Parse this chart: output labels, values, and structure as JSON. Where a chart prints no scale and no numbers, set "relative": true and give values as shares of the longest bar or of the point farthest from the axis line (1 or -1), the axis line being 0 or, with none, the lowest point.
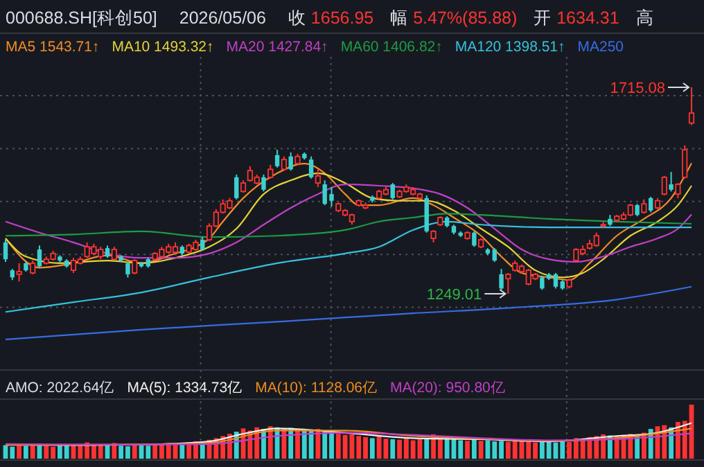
{
  "chart_data": [
    {
      "type": "candlestick",
      "title": "000688.SH[科创50]",
      "subtitle": "2026/05/06",
      "annotations": [
        "1715.08",
        "1249.01",
        "收 1656.95",
        "幅 5.47%(85.88)",
        "开 1634.31",
        "高"
      ],
      "categories": [
        null,
        null,
        null,
        null,
        null,
        null,
        null,
        null,
        null,
        null,
        null,
        null,
        null,
        null,
        null,
        null,
        null,
        null,
        null,
        null,
        null,
        null,
        null,
        null,
        null,
        null,
        null,
        null,
        null,
        null,
        null,
        null,
        null,
        null,
        null,
        null,
        null,
        null,
        null,
        null,
        null,
        null,
        null,
        null,
        null,
        null,
        null,
        null,
        null,
        null,
        null,
        null,
        null,
        null,
        null,
        null,
        null,
        null,
        null,
        null,
        null,
        null,
        null,
        null,
        null,
        null,
        null,
        null,
        null,
        null,
        null,
        null,
        null,
        null,
        null,
        null,
        null,
        null,
        null,
        null,
        null,
        null,
        null,
        null,
        null,
        null,
        null,
        null,
        null,
        null,
        null,
        null,
        null,
        null,
        null,
        null,
        null,
        null,
        null,
        null,
        null,
        null
      ],
      "ohlc": [
        [
          1365,
          1371,
          1321,
          1327
        ],
        [
          1302,
          1305,
          1280,
          1286
        ],
        [
          1293,
          1318,
          1277,
          1299
        ],
        [
          1318,
          1321,
          1299,
          1302
        ],
        [
          1296,
          1324,
          1293,
          1318
        ],
        [
          1349,
          1358,
          1308,
          1311
        ],
        [
          1318,
          1333,
          1315,
          1327
        ],
        [
          1327,
          1346,
          1324,
          1340
        ],
        [
          1333,
          1336,
          1318,
          1324
        ],
        [
          1324,
          1327,
          1308,
          1311
        ],
        [
          1302,
          1330,
          1296,
          1324
        ],
        [
          1318,
          1333,
          1315,
          1327
        ],
        [
          1333,
          1365,
          1330,
          1355
        ],
        [
          1340,
          1362,
          1336,
          1355
        ],
        [
          1333,
          1355,
          1327,
          1349
        ],
        [
          1352,
          1358,
          1330,
          1333
        ],
        [
          1327,
          1355,
          1324,
          1349
        ],
        [
          1333,
          1336,
          1321,
          1324
        ],
        [
          1318,
          1321,
          1286,
          1293
        ],
        [
          1296,
          1327,
          1293,
          1324
        ],
        [
          1318,
          1321,
          1308,
          1311
        ],
        [
          1327,
          1330,
          1308,
          1311
        ],
        [
          1327,
          1343,
          1324,
          1340
        ],
        [
          1333,
          1355,
          1330,
          1349
        ],
        [
          1343,
          1362,
          1340,
          1355
        ],
        [
          1343,
          1365,
          1340,
          1355
        ],
        [
          1355,
          1358,
          1336,
          1340
        ],
        [
          1343,
          1362,
          1340,
          1358
        ],
        [
          1349,
          1371,
          1346,
          1365
        ],
        [
          1371,
          1377,
          1346,
          1349
        ],
        [
          1371,
          1408,
          1368,
          1402
        ],
        [
          1402,
          1440,
          1399,
          1433
        ],
        [
          1433,
          1462,
          1430,
          1452
        ],
        [
          1443,
          1465,
          1440,
          1459
        ],
        [
          1512,
          1518,
          1462,
          1465
        ],
        [
          1480,
          1505,
          1477,
          1499
        ],
        [
          1505,
          1537,
          1502,
          1527
        ],
        [
          1499,
          1518,
          1496,
          1512
        ],
        [
          1512,
          1518,
          1480,
          1484
        ],
        [
          1512,
          1540,
          1509,
          1530
        ],
        [
          1562,
          1574,
          1534,
          1537
        ],
        [
          1530,
          1559,
          1527,
          1552
        ],
        [
          1559,
          1568,
          1527,
          1530
        ],
        [
          1543,
          1565,
          1540,
          1559
        ],
        [
          1565,
          1568,
          1552,
          1555
        ],
        [
          1552,
          1559,
          1509,
          1512
        ],
        [
          1499,
          1530,
          1490,
          1515
        ],
        [
          1496,
          1505,
          1449,
          1452
        ],
        [
          1474,
          1490,
          1446,
          1459
        ],
        [
          1437,
          1455,
          1433,
          1452
        ],
        [
          1427,
          1440,
          1424,
          1437
        ],
        [
          1412,
          1430,
          1405,
          1427
        ],
        [
          1449,
          1462,
          1446,
          1459
        ],
        [
          1443,
          1455,
          1440,
          1449
        ],
        [
          1468,
          1471,
          1455,
          1459
        ],
        [
          1465,
          1484,
          1462,
          1480
        ],
        [
          1474,
          1490,
          1471,
          1484
        ],
        [
          1496,
          1499,
          1462,
          1465
        ],
        [
          1468,
          1484,
          1465,
          1480
        ],
        [
          1480,
          1496,
          1477,
          1490
        ],
        [
          1474,
          1490,
          1471,
          1484
        ],
        [
          1465,
          1477,
          1462,
          1474
        ],
        [
          1465,
          1471,
          1387,
          1390
        ],
        [
          1374,
          1393,
          1365,
          1390
        ],
        [
          1405,
          1424,
          1402,
          1421
        ],
        [
          1421,
          1424,
          1399,
          1402
        ],
        [
          1402,
          1405,
          1383,
          1387
        ],
        [
          1387,
          1390,
          1377,
          1380
        ],
        [
          1374,
          1390,
          1371,
          1387
        ],
        [
          1387,
          1390,
          1355,
          1358
        ],
        [
          1355,
          1374,
          1352,
          1371
        ],
        [
          1349,
          1352,
          1336,
          1340
        ],
        [
          1349,
          1352,
          1321,
          1324
        ],
        [
          1293,
          1305,
          1258,
          1261
        ],
        [
          1283,
          1296,
          1249.01,
          1293
        ],
        [
          1302,
          1324,
          1299,
          1318
        ],
        [
          1299,
          1315,
          1296,
          1311
        ],
        [
          1271,
          1305,
          1268,
          1302
        ],
        [
          1283,
          1296,
          1280,
          1293
        ],
        [
          1286,
          1290,
          1258,
          1261
        ],
        [
          1293,
          1296,
          1280,
          1283
        ],
        [
          1293,
          1296,
          1261,
          1265
        ],
        [
          1277,
          1280,
          1258,
          1261
        ],
        [
          1265,
          1283,
          1261,
          1280
        ],
        [
          1324,
          1352,
          1321,
          1349
        ],
        [
          1340,
          1358,
          1336,
          1349
        ],
        [
          1352,
          1371,
          1349,
          1362
        ],
        [
          1358,
          1387,
          1355,
          1380
        ],
        [
          1402,
          1412,
          1399,
          1405
        ],
        [
          1418,
          1427,
          1402,
          1405
        ],
        [
          1415,
          1427,
          1412,
          1424
        ],
        [
          1418,
          1433,
          1415,
          1427
        ],
        [
          1427,
          1452,
          1424,
          1449
        ],
        [
          1449,
          1452,
          1424,
          1427
        ],
        [
          1433,
          1462,
          1430,
          1452
        ],
        [
          1465,
          1468,
          1433,
          1437
        ],
        [
          1443,
          1465,
          1440,
          1459
        ],
        [
          1474,
          1515,
          1471,
          1512
        ],
        [
          1496,
          1524,
          1480,
          1484
        ],
        [
          1474,
          1499,
          1465,
          1496
        ],
        [
          1512,
          1584,
          1509,
          1574
        ],
        [
          1634.31,
          1715.08,
          1630,
          1656.95
        ]
      ],
      "series": [
        {
          "name": "MA5 1543.71↑",
          "type": "line",
          "color": "#f28c28",
          "values": [
            1374,
            null,
            null,
            null,
            null,
            1308,
            null,
            null,
            null,
            null,
            1318,
            null,
            null,
            null,
            null,
            1336,
            null,
            null,
            null,
            null,
            1318,
            null,
            null,
            null,
            null,
            1340,
            null,
            null,
            1355,
            null,
            1374,
            null,
            1412,
            null,
            null,
            1465,
            null,
            null,
            null,
            null,
            1521,
            null,
            null,
            null,
            1543,
            null,
            null,
            1521,
            null,
            null,
            1474,
            null,
            1449,
            null,
            null,
            1449,
            null,
            null,
            null,
            null,
            1465,
            null,
            null,
            1449,
            null,
            null,
            1421,
            null,
            null,
            null,
            1380,
            null,
            null,
            1333,
            null,
            null,
            1296,
            null,
            null,
            null,
            1286,
            null,
            null,
            1280,
            null,
            null,
            1318,
            null,
            null,
            null,
            1380,
            null,
            null,
            null,
            1418,
            null,
            null,
            null,
            1465,
            null,
            null,
            1544
          ]
        },
        {
          "name": "MA10 1493.32↑",
          "type": "line",
          "color": "#e6d23c",
          "values": [
            1374,
            null,
            null,
            1333,
            null,
            null,
            null,
            null,
            1318,
            null,
            null,
            null,
            null,
            null,
            null,
            1324,
            null,
            null,
            null,
            null,
            1318,
            null,
            null,
            null,
            null,
            1330,
            null,
            null,
            null,
            null,
            1355,
            null,
            null,
            null,
            1396,
            null,
            null,
            null,
            1474,
            null,
            null,
            null,
            1505,
            null,
            null,
            null,
            1521,
            null,
            null,
            null,
            1499,
            null,
            null,
            null,
            1465,
            null,
            null,
            null,
            1459,
            null,
            null,
            null,
            1459,
            null,
            null,
            null,
            1437,
            null,
            null,
            null,
            1396,
            null,
            null,
            null,
            1355,
            null,
            null,
            null,
            1302,
            null,
            null,
            null,
            1286,
            null,
            null,
            1296,
            null,
            null,
            1327,
            null,
            null,
            null,
            1380,
            null,
            null,
            null,
            1412,
            null,
            null,
            1449,
            null,
            1493
          ]
        },
        {
          "name": "MA20 1427.84↑",
          "type": "line",
          "color": "#c040c8",
          "values": [
            1412,
            null,
            null,
            null,
            null,
            1387,
            null,
            null,
            null,
            null,
            1365,
            null,
            null,
            null,
            null,
            1340,
            null,
            null,
            null,
            null,
            1330,
            null,
            null,
            null,
            null,
            1330,
            null,
            null,
            null,
            null,
            1340,
            null,
            null,
            null,
            1365,
            null,
            null,
            null,
            1405,
            null,
            null,
            null,
            1443,
            null,
            null,
            null,
            1474,
            null,
            null,
            null,
            1496,
            null,
            null,
            null,
            null,
            1493,
            null,
            null,
            null,
            null,
            1487,
            null,
            null,
            null,
            1474,
            null,
            null,
            null,
            1443,
            null,
            null,
            null,
            1396,
            null,
            null,
            null,
            1349,
            null,
            null,
            null,
            1327,
            null,
            null,
            null,
            1321,
            null,
            null,
            null,
            1333,
            null,
            null,
            null,
            1355,
            null,
            null,
            null,
            1374,
            null,
            null,
            1396,
            null,
            1428
          ]
        },
        {
          "name": "MA60 1406.82↑",
          "type": "line",
          "color": "#1f9a46",
          "values": [
            1380,
            null,
            null,
            null,
            null,
            null,
            null,
            null,
            null,
            null,
            1383,
            null,
            null,
            null,
            null,
            null,
            null,
            null,
            null,
            null,
            1390,
            null,
            null,
            null,
            null,
            null,
            null,
            null,
            null,
            null,
            1377,
            null,
            null,
            null,
            null,
            null,
            null,
            null,
            null,
            null,
            1380,
            null,
            null,
            null,
            null,
            null,
            null,
            null,
            null,
            null,
            1393,
            null,
            null,
            null,
            null,
            1412,
            null,
            null,
            null,
            null,
            1421,
            null,
            null,
            null,
            null,
            1430,
            null,
            null,
            null,
            null,
            1427,
            null,
            null,
            null,
            null,
            null,
            null,
            null,
            null,
            null,
            1418,
            null,
            null,
            null,
            null,
            null,
            null,
            null,
            null,
            null,
            1412,
            null,
            null,
            null,
            null,
            null,
            null,
            null,
            null,
            null,
            null,
            1407
          ]
        },
        {
          "name": "MA120 1398.51↑",
          "type": "line",
          "color": "#38c0e0",
          "values": [
            1208,
            null,
            null,
            null,
            null,
            null,
            null,
            null,
            null,
            null,
            1230,
            null,
            null,
            null,
            null,
            null,
            null,
            null,
            null,
            null,
            1252,
            null,
            null,
            null,
            null,
            null,
            null,
            null,
            null,
            null,
            1286,
            null,
            null,
            null,
            null,
            null,
            null,
            null,
            null,
            null,
            1318,
            null,
            null,
            null,
            null,
            null,
            null,
            null,
            null,
            null,
            1340,
            null,
            null,
            null,
            null,
            1355,
            null,
            null,
            null,
            null,
            1393,
            null,
            null,
            null,
            null,
            1412,
            null,
            null,
            null,
            null,
            1405,
            null,
            null,
            null,
            null,
            null,
            null,
            null,
            null,
            null,
            1399,
            null,
            null,
            null,
            null,
            null,
            null,
            null,
            null,
            null,
            1399,
            null,
            null,
            null,
            null,
            null,
            null,
            null,
            null,
            null,
            null,
            1399
          ]
        },
        {
          "name": "MA250",
          "type": "line",
          "color": "#3a6ae8",
          "values": [
            1146,
            null,
            null,
            null,
            null,
            null,
            null,
            null,
            null,
            null,
            null,
            null,
            null,
            null,
            null,
            null,
            null,
            null,
            null,
            null,
            1168,
            null,
            null,
            null,
            null,
            null,
            null,
            null,
            null,
            null,
            null,
            null,
            null,
            null,
            null,
            null,
            null,
            null,
            null,
            null,
            1186,
            null,
            null,
            null,
            null,
            null,
            null,
            null,
            null,
            null,
            null,
            null,
            null,
            null,
            null,
            null,
            null,
            null,
            null,
            null,
            1205,
            null,
            null,
            null,
            null,
            null,
            null,
            null,
            null,
            null,
            null,
            null,
            null,
            null,
            null,
            1218,
            null,
            null,
            null,
            null,
            null,
            null,
            null,
            null,
            null,
            null,
            null,
            null,
            null,
            null,
            1236,
            null,
            null,
            null,
            null,
            null,
            null,
            null,
            null,
            null,
            null,
            1265
          ]
        }
      ],
      "grid": true,
      "legend": "top"
    },
    {
      "type": "bar",
      "relative": true,
      "grid": true,
      "legend": "top",
      "annotations": [
        "AMO: 2022.64亿"
      ],
      "categories": [
        null,
        null,
        null,
        null,
        null,
        null,
        null,
        null,
        null,
        null,
        null,
        null,
        null,
        null,
        null,
        null,
        null,
        null,
        null,
        null,
        null,
        null,
        null,
        null,
        null,
        null,
        null,
        null,
        null,
        null,
        null,
        null,
        null,
        null,
        null,
        null,
        null,
        null,
        null,
        null,
        null,
        null,
        null,
        null,
        null,
        null,
        null,
        null,
        null,
        null,
        null,
        null,
        null,
        null,
        null,
        null,
        null,
        null,
        null,
        null,
        null,
        null,
        null,
        null,
        null,
        null,
        null,
        null,
        null,
        null,
        null,
        null,
        null,
        null,
        null,
        null,
        null,
        null,
        null,
        null,
        null,
        null,
        null,
        null,
        null,
        null,
        null,
        null,
        null,
        null,
        null,
        null,
        null,
        null,
        null,
        null,
        null,
        null,
        null,
        null,
        null,
        null
      ],
      "series": [
        {
          "type": "bar",
          "values": [
            0.25,
            0.22,
            0.27,
            0.24,
            0.26,
            0.28,
            0.24,
            0.22,
            0.27,
            0.25,
            0.26,
            0.24,
            0.3,
            0.27,
            0.25,
            0.26,
            0.29,
            0.24,
            0.23,
            0.27,
            0.25,
            0.24,
            0.26,
            0.27,
            0.29,
            0.28,
            0.26,
            0.3,
            0.32,
            0.3,
            0.35,
            0.38,
            0.42,
            0.46,
            0.5,
            0.56,
            0.52,
            0.58,
            0.55,
            0.6,
            0.58,
            0.56,
            0.57,
            0.55,
            0.53,
            0.52,
            0.55,
            0.5,
            0.48,
            0.46,
            0.44,
            0.45,
            0.42,
            0.4,
            0.38,
            0.43,
            0.37,
            0.36,
            0.35,
            0.37,
            0.34,
            0.36,
            0.38,
            0.45,
            0.42,
            0.38,
            0.36,
            0.34,
            0.33,
            0.35,
            0.33,
            0.34,
            0.32,
            0.33,
            0.31,
            0.34,
            0.33,
            0.32,
            0.3,
            0.33,
            0.31,
            0.3,
            0.32,
            0.31,
            0.38,
            0.36,
            0.4,
            0.42,
            0.45,
            0.43,
            0.41,
            0.44,
            0.46,
            0.43,
            0.48,
            0.55,
            0.6,
            0.62,
            0.58,
            0.68,
            0.7,
            1
          ],
          "colors": [
            "#3dd0d0",
            "#3dd0d0",
            "#ff3333",
            "#3dd0d0",
            "#ff3333",
            "#3dd0d0",
            "#ff3333",
            "#ff3333",
            "#3dd0d0",
            "#3dd0d0",
            "#ff3333",
            "#ff3333",
            "#ff3333",
            "#ff3333",
            "#ff3333",
            "#3dd0d0",
            "#ff3333",
            "#3dd0d0",
            "#3dd0d0",
            "#ff3333",
            "#3dd0d0",
            "#3dd0d0",
            "#ff3333",
            "#ff3333",
            "#ff3333",
            "#ff3333",
            "#3dd0d0",
            "#ff3333",
            "#ff3333",
            "#3dd0d0",
            "#ff3333",
            "#ff3333",
            "#ff3333",
            "#ff3333",
            "#3dd0d0",
            "#ff3333",
            "#ff3333",
            "#ff3333",
            "#3dd0d0",
            "#ff3333",
            "#3dd0d0",
            "#ff3333",
            "#3dd0d0",
            "#ff3333",
            "#3dd0d0",
            "#3dd0d0",
            "#ff3333",
            "#3dd0d0",
            "#3dd0d0",
            "#ff3333",
            "#ff3333",
            "#ff3333",
            "#ff3333",
            "#ff3333",
            "#3dd0d0",
            "#ff3333",
            "#ff3333",
            "#3dd0d0",
            "#ff3333",
            "#ff3333",
            "#ff3333",
            "#ff3333",
            "#3dd0d0",
            "#ff3333",
            "#ff3333",
            "#3dd0d0",
            "#3dd0d0",
            "#3dd0d0",
            "#ff3333",
            "#3dd0d0",
            "#ff3333",
            "#3dd0d0",
            "#3dd0d0",
            "#3dd0d0",
            "#ff3333",
            "#ff3333",
            "#ff3333",
            "#ff3333",
            "#ff3333",
            "#3dd0d0",
            "#3dd0d0",
            "#3dd0d0",
            "#3dd0d0",
            "#ff3333",
            "#ff3333",
            "#ff3333",
            "#ff3333",
            "#ff3333",
            "#ff3333",
            "#3dd0d0",
            "#ff3333",
            "#ff3333",
            "#ff3333",
            "#3dd0d0",
            "#ff3333",
            "#3dd0d0",
            "#ff3333",
            "#ff3333",
            "#3dd0d0",
            "#ff3333",
            "#ff3333",
            "#ff3333"
          ]
        },
        {
          "name": "MA(5): 1334.73亿",
          "type": "line",
          "color": "#f0f0f0",
          "values": [
            0.26,
            null,
            null,
            null,
            null,
            null,
            null,
            null,
            null,
            null,
            0.25,
            null,
            null,
            null,
            null,
            null,
            null,
            null,
            null,
            null,
            0.26,
            null,
            null,
            null,
            null,
            null,
            null,
            null,
            null,
            null,
            0.32,
            null,
            null,
            null,
            null,
            0.46,
            null,
            null,
            null,
            null,
            0.56,
            null,
            null,
            null,
            null,
            null,
            null,
            null,
            null,
            null,
            0.48,
            null,
            null,
            null,
            null,
            null,
            null,
            null,
            null,
            null,
            0.38,
            null,
            null,
            null,
            null,
            null,
            null,
            null,
            null,
            null,
            0.36,
            null,
            null,
            null,
            null,
            null,
            null,
            null,
            null,
            null,
            0.32,
            null,
            null,
            null,
            null,
            null,
            null,
            null,
            null,
            null,
            0.42,
            null,
            null,
            null,
            null,
            0.46,
            null,
            null,
            null,
            null,
            null,
            0.66
          ]
        },
        {
          "name": "MA(10): 1128.06亿",
          "type": "line",
          "color": "#f08c1e",
          "values": [
            0.25,
            null,
            null,
            null,
            null,
            null,
            null,
            null,
            null,
            null,
            null,
            null,
            null,
            null,
            null,
            null,
            null,
            null,
            null,
            null,
            0.26,
            null,
            null,
            null,
            null,
            null,
            null,
            null,
            null,
            null,
            0.29,
            null,
            null,
            null,
            null,
            null,
            null,
            null,
            null,
            null,
            0.52,
            null,
            null,
            null,
            null,
            null,
            null,
            null,
            null,
            null,
            0.52,
            null,
            null,
            null,
            null,
            null,
            null,
            null,
            null,
            null,
            0.42,
            null,
            null,
            null,
            null,
            null,
            null,
            null,
            null,
            null,
            0.37,
            null,
            null,
            null,
            null,
            null,
            null,
            null,
            null,
            null,
            0.33,
            null,
            null,
            null,
            null,
            null,
            null,
            null,
            null,
            null,
            0.38,
            null,
            null,
            null,
            null,
            null,
            null,
            null,
            null,
            null,
            null,
            0.56
          ]
        },
        {
          "name": "MA(20): 950.80亿",
          "type": "line",
          "color": "#c040c8",
          "values": [
            0.27,
            null,
            null,
            null,
            null,
            null,
            null,
            null,
            null,
            null,
            null,
            null,
            null,
            null,
            null,
            null,
            null,
            null,
            null,
            null,
            0.26,
            null,
            null,
            null,
            null,
            null,
            null,
            null,
            null,
            null,
            0.27,
            null,
            null,
            null,
            null,
            null,
            null,
            null,
            null,
            null,
            0.42,
            null,
            null,
            null,
            null,
            null,
            null,
            null,
            null,
            null,
            0.48,
            null,
            null,
            null,
            null,
            null,
            null,
            null,
            null,
            null,
            0.44,
            null,
            null,
            null,
            null,
            null,
            null,
            null,
            null,
            null,
            0.38,
            null,
            null,
            null,
            null,
            null,
            null,
            null,
            null,
            null,
            0.34,
            null,
            null,
            null,
            null,
            null,
            null,
            null,
            null,
            null,
            0.36,
            null,
            null,
            null,
            null,
            null,
            null,
            null,
            null,
            null,
            null,
            0.47
          ]
        }
      ]
    }
  ]
}
